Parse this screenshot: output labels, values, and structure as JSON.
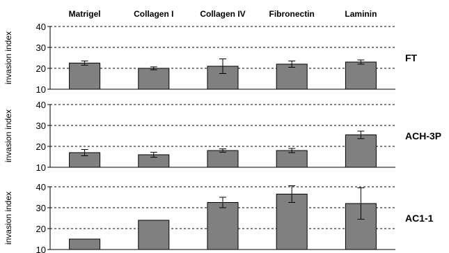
{
  "chart_data": {
    "type": "bar",
    "categories": [
      "Matrigel",
      "Collagen I",
      "Collagen IV",
      "Fibronectin",
      "Laminin"
    ],
    "ylabel": "invasion index",
    "ylim": [
      10,
      40
    ],
    "yticks": [
      10,
      20,
      30,
      40
    ],
    "grid": "dashed horizontal",
    "bar_color": "#808080",
    "panels": [
      {
        "name": "FT",
        "values": [
          22.5,
          20,
          21,
          22,
          23
        ],
        "errors": [
          1,
          0.7,
          3.5,
          1.5,
          1
        ]
      },
      {
        "name": "ACH-3P",
        "values": [
          17,
          16,
          18,
          18,
          25.5
        ],
        "errors": [
          1.5,
          1.2,
          0.8,
          1,
          1.8
        ]
      },
      {
        "name": "AC1-1",
        "values": [
          15,
          24,
          32.5,
          36.5,
          32
        ],
        "errors": [
          0,
          0,
          2.5,
          4,
          7.5
        ]
      }
    ]
  }
}
